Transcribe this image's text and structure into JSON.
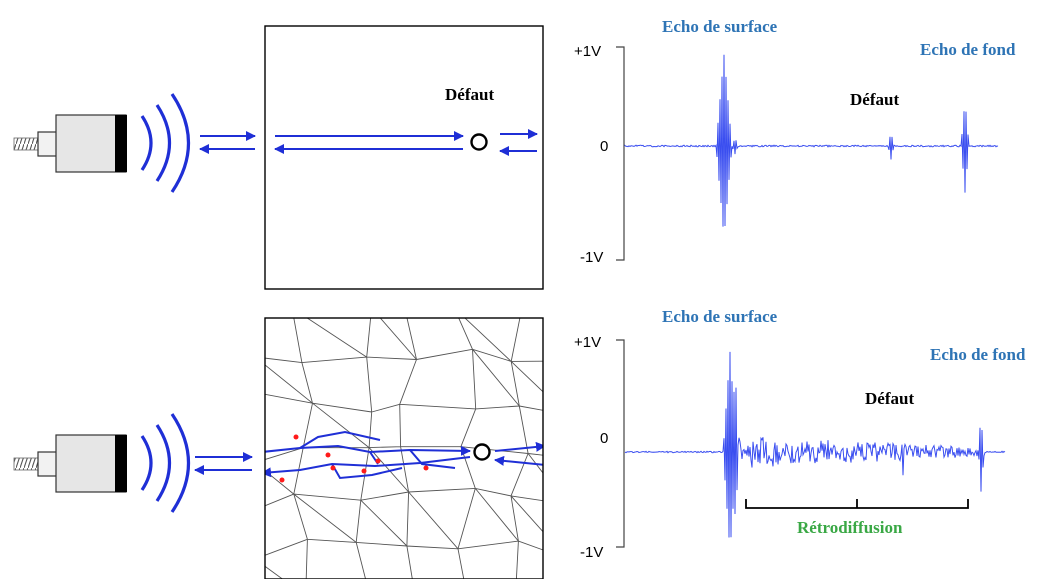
{
  "colors": {
    "wave": "#1f2fd6",
    "signal": "#3a4ef0",
    "label_blue": "#2e74b5",
    "label_green": "#3aa845",
    "scatter_red": "#ff1a1a"
  },
  "icons": [
    "transducer-icon",
    "ultrasound-wave-icon",
    "defect-icon"
  ],
  "panels": [
    {
      "medium": "homogeneous",
      "defect_label": "Défaut",
      "chart": {
        "y_top": "+1V",
        "y_zero": "0",
        "y_bottom": "-1V",
        "echo_surface": "Echo de surface",
        "echo_fond": "Echo de fond",
        "defect": "Défaut"
      }
    },
    {
      "medium": "polycrystalline",
      "chart": {
        "y_top": "+1V",
        "y_zero": "0",
        "y_bottom": "-1V",
        "echo_surface": "Echo de surface",
        "echo_fond": "Echo de fond",
        "defect": "Défaut",
        "backscatter": "Rétrodiffusion"
      }
    }
  ],
  "chart_data": [
    {
      "type": "line",
      "y_ticks": [
        "+1V",
        "0",
        "-1V"
      ],
      "ylim": [
        -1,
        1
      ],
      "series": [
        {
          "values": []
        }
      ],
      "peaks": [
        {
          "label": "Echo de surface",
          "amplitude": 0.95
        },
        {
          "label": "Défaut",
          "amplitude": 0.18
        },
        {
          "label": "Echo de fond",
          "amplitude": 0.45
        }
      ]
    },
    {
      "type": "line",
      "y_ticks": [
        "+1V",
        "0",
        "-1V"
      ],
      "ylim": [
        -1,
        1
      ],
      "series": [
        {
          "values": []
        }
      ],
      "peaks": [
        {
          "label": "Echo de surface",
          "amplitude": 0.95
        },
        {
          "label": "Défaut",
          "amplitude": 0.2
        },
        {
          "label": "Echo de fond",
          "amplitude": 0.35
        }
      ],
      "annotation": "Rétrodiffusion"
    }
  ]
}
